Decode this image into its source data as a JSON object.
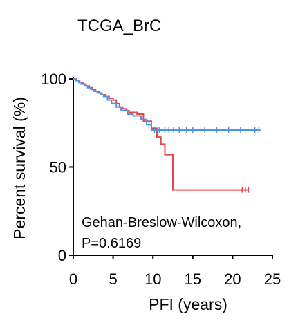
{
  "chart_data": {
    "type": "line",
    "title": "TCGA_BrC",
    "xlabel": "PFI  (years)",
    "ylabel": "Percent survival (%)",
    "xlim": [
      0,
      25
    ],
    "ylim": [
      0,
      100
    ],
    "x_ticks": [
      0,
      5,
      10,
      15,
      20,
      25
    ],
    "y_ticks": [
      0,
      50,
      100
    ],
    "grid": false,
    "annotation": [
      "Gehan-Breslow-Wilcoxon,",
      "P=0.6169"
    ],
    "series": [
      {
        "color": "#e8464a",
        "steps": [
          [
            0,
            100
          ],
          [
            0.4,
            99
          ],
          [
            0.8,
            98
          ],
          [
            1.2,
            97
          ],
          [
            1.6,
            96
          ],
          [
            2.0,
            95
          ],
          [
            2.4,
            94
          ],
          [
            2.8,
            93
          ],
          [
            3.2,
            92
          ],
          [
            3.6,
            91
          ],
          [
            4.0,
            90
          ],
          [
            4.5,
            89
          ],
          [
            5.0,
            88
          ],
          [
            5.4,
            86
          ],
          [
            5.8,
            84
          ],
          [
            6.2,
            83
          ],
          [
            6.6,
            82
          ],
          [
            7.0,
            81
          ],
          [
            8.0,
            80
          ],
          [
            8.8,
            76
          ],
          [
            9.8,
            72
          ],
          [
            10.5,
            67
          ],
          [
            11.0,
            63
          ],
          [
            11.5,
            57
          ],
          [
            12.5,
            37
          ],
          [
            22.0,
            37
          ]
        ],
        "censored": [
          21.2,
          21.6,
          22.0
        ]
      },
      {
        "color": "#4f93e6",
        "steps": [
          [
            0,
            100
          ],
          [
            0.3,
            99
          ],
          [
            0.7,
            98
          ],
          [
            1.0,
            97
          ],
          [
            1.4,
            96
          ],
          [
            1.8,
            95
          ],
          [
            2.2,
            94
          ],
          [
            2.6,
            93
          ],
          [
            3.0,
            92
          ],
          [
            3.4,
            91
          ],
          [
            3.8,
            90
          ],
          [
            4.3,
            88
          ],
          [
            4.8,
            86
          ],
          [
            5.4,
            84
          ],
          [
            6.0,
            82
          ],
          [
            6.8,
            80
          ],
          [
            7.5,
            79
          ],
          [
            8.5,
            77
          ],
          [
            9.2,
            74
          ],
          [
            9.8,
            71
          ],
          [
            23.5,
            71
          ]
        ],
        "censored": [
          9.5,
          10.2,
          10.8,
          11.5,
          12.0,
          12.6,
          13.3,
          14.2,
          15.0,
          16.5,
          18.0,
          19.5,
          21.0,
          22.8,
          23.3
        ]
      }
    ]
  }
}
